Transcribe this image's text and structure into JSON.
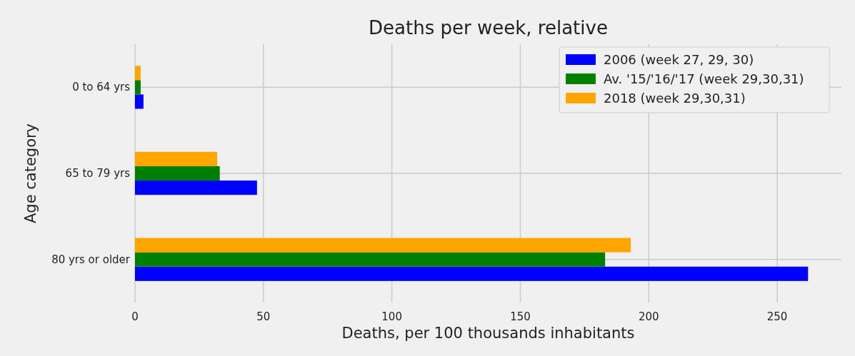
{
  "chart_data": {
    "type": "bar",
    "orientation": "horizontal",
    "title": "Deaths per week, relative",
    "xlabel": "Deaths, per 100 thousands inhabitants",
    "ylabel": "Age category",
    "categories": [
      "0 to 64 yrs",
      "65 to 79 yrs",
      "80 yrs or older"
    ],
    "series": [
      {
        "name": "2006 (week 27, 29, 30)",
        "color": "#0000ff",
        "values": [
          3.3,
          47.5,
          262
        ]
      },
      {
        "name": "Av. '15/'16/'17 (week 29,30,31)",
        "color": "#008000",
        "values": [
          2.2,
          33,
          183
        ]
      },
      {
        "name": "2018 (week 29,30,31)",
        "color": "#ffa500",
        "values": [
          2.2,
          32,
          193
        ]
      }
    ],
    "xlim": [
      0,
      275
    ],
    "xticks": [
      0,
      50,
      100,
      150,
      200,
      250
    ],
    "grid": true,
    "legend": "top right"
  }
}
